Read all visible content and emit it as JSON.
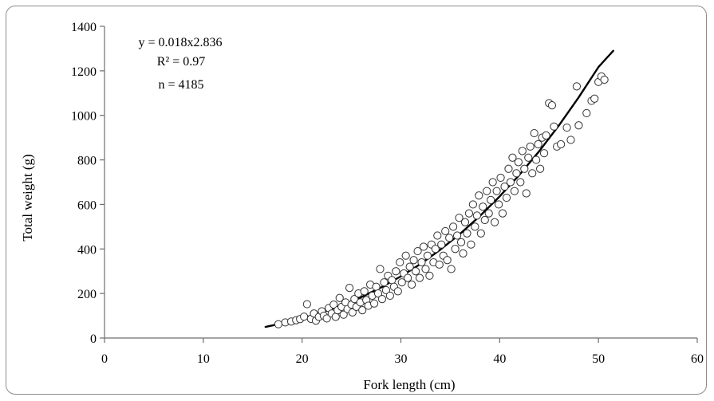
{
  "chart_data": {
    "type": "scatter",
    "title": "",
    "xlabel": "Fork length  (cm)",
    "ylabel": "Total weight  (g)",
    "xlim": [
      0,
      60
    ],
    "ylim": [
      0,
      1400
    ],
    "x_ticks": [
      0,
      10,
      20,
      30,
      40,
      50,
      60
    ],
    "y_ticks": [
      0,
      200,
      400,
      600,
      800,
      1000,
      1200,
      1400
    ],
    "grid": false,
    "legend": "none",
    "annotations": [
      "y = 0.018x2.836",
      "R² = 0.97",
      "n = 4185"
    ],
    "series": [
      {
        "type": "scatter",
        "marker": "open-circle",
        "points": [
          [
            17.6,
            62
          ],
          [
            18.3,
            70
          ],
          [
            18.9,
            74
          ],
          [
            19.4,
            80
          ],
          [
            19.8,
            85
          ],
          [
            20.2,
            96
          ],
          [
            20.5,
            152
          ],
          [
            20.9,
            86
          ],
          [
            21.2,
            110
          ],
          [
            21.4,
            78
          ],
          [
            21.7,
            95
          ],
          [
            22.0,
            120
          ],
          [
            22.2,
            100
          ],
          [
            22.5,
            88
          ],
          [
            22.7,
            135
          ],
          [
            23.0,
            110
          ],
          [
            23.2,
            150
          ],
          [
            23.4,
            95
          ],
          [
            23.6,
            125
          ],
          [
            23.8,
            180
          ],
          [
            24.0,
            140
          ],
          [
            24.2,
            105
          ],
          [
            24.4,
            160
          ],
          [
            24.6,
            130
          ],
          [
            24.8,
            225
          ],
          [
            25.0,
            150
          ],
          [
            25.1,
            115
          ],
          [
            25.3,
            175
          ],
          [
            25.5,
            140
          ],
          [
            25.7,
            200
          ],
          [
            25.9,
            160
          ],
          [
            26.1,
            125
          ],
          [
            26.3,
            210
          ],
          [
            26.5,
            170
          ],
          [
            26.7,
            145
          ],
          [
            26.9,
            240
          ],
          [
            27.1,
            190
          ],
          [
            27.3,
            155
          ],
          [
            27.5,
            230
          ],
          [
            27.7,
            200
          ],
          [
            27.9,
            310
          ],
          [
            28.1,
            175
          ],
          [
            28.3,
            250
          ],
          [
            28.5,
            215
          ],
          [
            28.7,
            280
          ],
          [
            28.9,
            190
          ],
          [
            29.1,
            260
          ],
          [
            29.3,
            230
          ],
          [
            29.5,
            300
          ],
          [
            29.7,
            210
          ],
          [
            29.9,
            340
          ],
          [
            30.1,
            250
          ],
          [
            30.3,
            290
          ],
          [
            30.5,
            370
          ],
          [
            30.7,
            270
          ],
          [
            30.9,
            320
          ],
          [
            31.1,
            240
          ],
          [
            31.3,
            350
          ],
          [
            31.5,
            300
          ],
          [
            31.7,
            390
          ],
          [
            31.9,
            270
          ],
          [
            32.1,
            340
          ],
          [
            32.3,
            410
          ],
          [
            32.5,
            310
          ],
          [
            32.7,
            370
          ],
          [
            32.9,
            280
          ],
          [
            33.1,
            420
          ],
          [
            33.3,
            340
          ],
          [
            33.5,
            400
          ],
          [
            33.7,
            460
          ],
          [
            33.9,
            330
          ],
          [
            34.1,
            420
          ],
          [
            34.3,
            370
          ],
          [
            34.5,
            480
          ],
          [
            34.7,
            350
          ],
          [
            34.9,
            450
          ],
          [
            35.1,
            310
          ],
          [
            35.3,
            500
          ],
          [
            35.5,
            400
          ],
          [
            35.7,
            460
          ],
          [
            35.9,
            540
          ],
          [
            36.1,
            430
          ],
          [
            36.3,
            380
          ],
          [
            36.5,
            520
          ],
          [
            36.7,
            470
          ],
          [
            36.9,
            560
          ],
          [
            37.1,
            420
          ],
          [
            37.3,
            600
          ],
          [
            37.5,
            500
          ],
          [
            37.7,
            550
          ],
          [
            37.9,
            640
          ],
          [
            38.1,
            470
          ],
          [
            38.3,
            590
          ],
          [
            38.5,
            530
          ],
          [
            38.7,
            660
          ],
          [
            38.9,
            560
          ],
          [
            39.1,
            620
          ],
          [
            39.3,
            700
          ],
          [
            39.5,
            520
          ],
          [
            39.7,
            660
          ],
          [
            39.9,
            600
          ],
          [
            40.1,
            720
          ],
          [
            40.3,
            560
          ],
          [
            40.5,
            680
          ],
          [
            40.7,
            630
          ],
          [
            40.9,
            760
          ],
          [
            41.1,
            700
          ],
          [
            41.3,
            810
          ],
          [
            41.5,
            660
          ],
          [
            41.7,
            740
          ],
          [
            41.9,
            790
          ],
          [
            42.1,
            700
          ],
          [
            42.3,
            840
          ],
          [
            42.5,
            760
          ],
          [
            42.7,
            650
          ],
          [
            42.9,
            810
          ],
          [
            43.1,
            860
          ],
          [
            43.3,
            740
          ],
          [
            43.5,
            920
          ],
          [
            43.7,
            800
          ],
          [
            43.9,
            870
          ],
          [
            44.1,
            760
          ],
          [
            44.3,
            900
          ],
          [
            44.5,
            830
          ],
          [
            44.7,
            910
          ],
          [
            45.0,
            1055
          ],
          [
            45.3,
            1045
          ],
          [
            45.5,
            950
          ],
          [
            45.8,
            860
          ],
          [
            46.2,
            870
          ],
          [
            46.8,
            945
          ],
          [
            47.2,
            890
          ],
          [
            47.8,
            1130
          ],
          [
            48.0,
            955
          ],
          [
            48.8,
            1010
          ],
          [
            49.3,
            1065
          ],
          [
            49.6,
            1075
          ],
          [
            50.0,
            1150
          ],
          [
            50.3,
            1175
          ],
          [
            50.6,
            1160
          ]
        ]
      },
      {
        "type": "line",
        "equation": "y = 0.018x2.836",
        "x": [
          16.3,
          18,
          20,
          22,
          24,
          26,
          28,
          30,
          32,
          34,
          36,
          38,
          40,
          42,
          44,
          46,
          48,
          50,
          51.5
        ],
        "values": [
          50,
          66,
          88,
          115,
          147,
          184,
          227,
          277,
          333,
          397,
          468,
          548,
          636,
          733,
          839,
          955,
          1081,
          1217,
          1290
        ]
      }
    ]
  }
}
